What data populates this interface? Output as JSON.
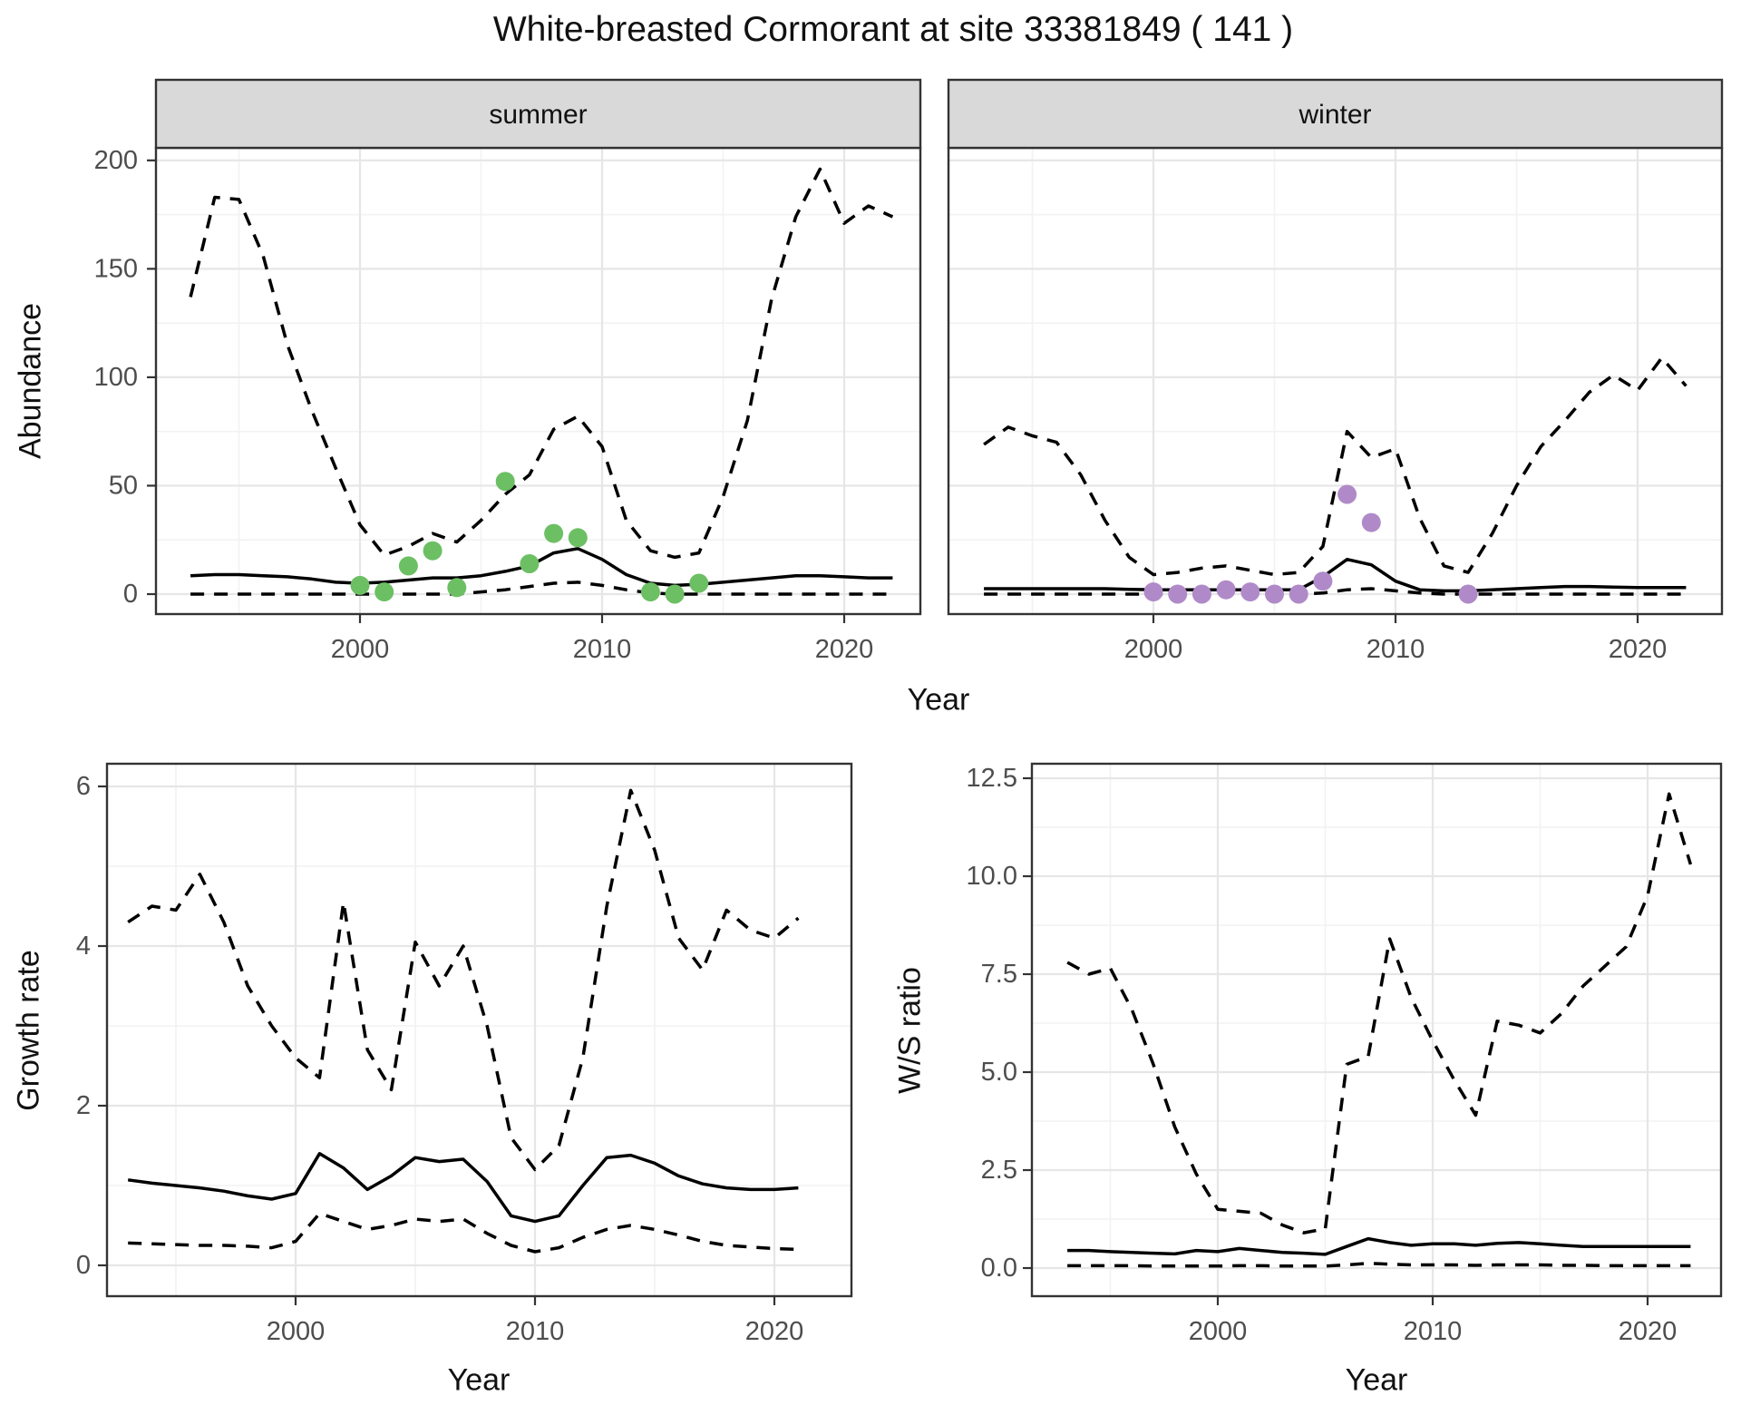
{
  "title": "White-breasted Cormorant at site 33381849 ( 141 )",
  "axis_labels": {
    "y_top": "Abundance",
    "x": "Year",
    "y_growth": "Growth rate",
    "y_ws": "W/S ratio"
  },
  "colors": {
    "summer_points": "#6cbf63",
    "winter_points": "#b08ac8",
    "line": "#000000",
    "strip_fill": "#d9d9d9",
    "panel_border": "#333333",
    "grid_major": "#e6e6e6",
    "grid_minor": "#f2f2f2",
    "tick_text": "#4d4d4d",
    "title_text": "#111111"
  },
  "chart_data": [
    {
      "id": "abundance-summer",
      "type": "line",
      "facet_label": "summer",
      "xlabel": "Year",
      "ylabel": "Abundance",
      "ylim": [
        0,
        205
      ],
      "grid": true,
      "legend": "none",
      "x_ticks": [
        2000,
        2010,
        2020
      ],
      "x_tick_labels": [
        "2000",
        "2010",
        "2020"
      ],
      "y_ticks": [
        0,
        50,
        100,
        150,
        200
      ],
      "y_tick_labels": [
        "0",
        "50",
        "100",
        "150",
        "200"
      ],
      "x": [
        1993,
        1994,
        1995,
        1996,
        1997,
        1998,
        1999,
        2000,
        2001,
        2002,
        2003,
        2004,
        2005,
        2006,
        2007,
        2008,
        2009,
        2010,
        2011,
        2012,
        2013,
        2014,
        2015,
        2016,
        2017,
        2018,
        2019,
        2020,
        2021,
        2022
      ],
      "series": [
        {
          "name": "upper_95ci",
          "style": "dashed",
          "values": [
            137,
            183,
            182,
            156,
            115,
            85,
            58,
            32,
            18,
            22,
            28,
            24,
            34,
            46,
            55,
            76,
            82,
            68,
            34,
            20,
            17,
            19,
            45,
            80,
            136,
            174,
            196,
            171,
            179,
            174
          ]
        },
        {
          "name": "median",
          "style": "solid",
          "values": [
            8.5,
            9,
            9,
            8.5,
            8,
            7,
            5.5,
            5,
            5.5,
            6.5,
            7.5,
            7.5,
            8.5,
            10.5,
            13,
            19,
            21,
            16,
            9,
            5,
            4,
            4.5,
            5.5,
            6.5,
            7.5,
            8.5,
            8.5,
            8,
            7.5,
            7.5
          ]
        },
        {
          "name": "lower_95ci",
          "style": "dashed",
          "values": [
            0,
            0,
            0,
            0,
            0,
            0,
            0,
            0,
            0,
            0,
            0,
            0,
            1,
            2,
            3.5,
            5,
            5.5,
            4,
            2,
            0.5,
            0,
            0,
            0,
            0,
            0,
            0,
            0,
            0,
            0,
            0
          ]
        }
      ],
      "points": {
        "name": "observed_counts",
        "color_key": "summer_points",
        "data": [
          [
            2000,
            4
          ],
          [
            2001,
            1
          ],
          [
            2002,
            13
          ],
          [
            2003,
            20
          ],
          [
            2004,
            3
          ],
          [
            2006,
            52
          ],
          [
            2007,
            14
          ],
          [
            2008,
            28
          ],
          [
            2009,
            26
          ],
          [
            2012,
            1
          ],
          [
            2013,
            0
          ],
          [
            2014,
            5
          ]
        ]
      }
    },
    {
      "id": "abundance-winter",
      "type": "line",
      "facet_label": "winter",
      "xlabel": "Year",
      "ylabel": "Abundance",
      "ylim": [
        0,
        205
      ],
      "grid": true,
      "legend": "none",
      "x_ticks": [
        2000,
        2010,
        2020
      ],
      "x_tick_labels": [
        "2000",
        "2010",
        "2020"
      ],
      "y_ticks": [
        0,
        50,
        100,
        150,
        200
      ],
      "y_tick_labels": [
        "0",
        "50",
        "100",
        "150",
        "200"
      ],
      "x": [
        1993,
        1994,
        1995,
        1996,
        1997,
        1998,
        1999,
        2000,
        2001,
        2002,
        2003,
        2004,
        2005,
        2006,
        2007,
        2008,
        2009,
        2010,
        2011,
        2012,
        2013,
        2014,
        2015,
        2016,
        2017,
        2018,
        2019,
        2020,
        2021,
        2022
      ],
      "series": [
        {
          "name": "upper_95ci",
          "style": "dashed",
          "values": [
            69,
            77,
            73,
            70,
            55,
            34,
            17,
            9,
            10,
            12,
            13,
            11,
            9,
            10,
            22,
            75,
            63,
            67,
            35,
            13,
            10,
            28,
            50,
            68,
            80,
            93,
            101,
            94,
            109,
            96
          ]
        },
        {
          "name": "median",
          "style": "solid",
          "values": [
            2.5,
            2.5,
            2.5,
            2.5,
            2.5,
            2.5,
            2.2,
            2,
            2,
            2,
            2,
            2,
            2,
            2,
            8,
            16,
            13.5,
            6,
            2,
            1.5,
            1.5,
            2,
            2.5,
            3,
            3.5,
            3.5,
            3.2,
            3,
            3,
            3
          ]
        },
        {
          "name": "lower_95ci",
          "style": "dashed",
          "values": [
            0,
            0,
            0,
            0,
            0,
            0,
            0,
            0,
            0,
            0,
            0,
            0,
            0,
            0,
            0.5,
            2,
            2.5,
            1.5,
            0.5,
            0,
            0,
            0,
            0,
            0,
            0,
            0,
            0,
            0,
            0,
            0
          ]
        }
      ],
      "points": {
        "name": "observed_counts",
        "color_key": "winter_points",
        "data": [
          [
            2000,
            1
          ],
          [
            2001,
            0
          ],
          [
            2002,
            0
          ],
          [
            2003,
            2
          ],
          [
            2004,
            1
          ],
          [
            2005,
            0
          ],
          [
            2006,
            0
          ],
          [
            2007,
            6
          ],
          [
            2008,
            46
          ],
          [
            2009,
            33
          ],
          [
            2013,
            0
          ]
        ]
      }
    },
    {
      "id": "growth-rate",
      "type": "line",
      "facet_label": null,
      "xlabel": "Year",
      "ylabel": "Growth rate",
      "ylim": [
        0,
        6.3
      ],
      "grid": true,
      "legend": "none",
      "x_ticks": [
        2000,
        2010,
        2020
      ],
      "x_tick_labels": [
        "2000",
        "2010",
        "2020"
      ],
      "y_ticks": [
        0,
        2,
        4,
        6
      ],
      "y_tick_labels": [
        "0",
        "2",
        "4",
        "6"
      ],
      "x": [
        1993,
        1994,
        1995,
        1996,
        1997,
        1998,
        1999,
        2000,
        2001,
        2002,
        2003,
        2004,
        2005,
        2006,
        2007,
        2008,
        2009,
        2010,
        2011,
        2012,
        2013,
        2014,
        2015,
        2016,
        2017,
        2018,
        2019,
        2020,
        2021
      ],
      "series": [
        {
          "name": "upper_95ci",
          "style": "dashed",
          "values": [
            4.3,
            4.5,
            4.45,
            4.9,
            4.3,
            3.5,
            3.0,
            2.6,
            2.35,
            4.55,
            2.7,
            2.2,
            4.05,
            3.5,
            4.0,
            3.0,
            1.6,
            1.2,
            1.5,
            2.6,
            4.5,
            5.95,
            5.2,
            4.1,
            3.7,
            4.45,
            4.2,
            4.1,
            4.35
          ]
        },
        {
          "name": "median",
          "style": "solid",
          "values": [
            1.07,
            1.03,
            1.0,
            0.97,
            0.93,
            0.87,
            0.83,
            0.9,
            1.4,
            1.22,
            0.95,
            1.12,
            1.35,
            1.3,
            1.33,
            1.05,
            0.62,
            0.55,
            0.62,
            1.0,
            1.35,
            1.38,
            1.28,
            1.12,
            1.02,
            0.97,
            0.95,
            0.95,
            0.97
          ]
        },
        {
          "name": "lower_95ci",
          "style": "dashed",
          "values": [
            0.28,
            0.27,
            0.26,
            0.25,
            0.25,
            0.24,
            0.22,
            0.3,
            0.65,
            0.55,
            0.45,
            0.5,
            0.58,
            0.55,
            0.58,
            0.4,
            0.25,
            0.17,
            0.22,
            0.35,
            0.45,
            0.5,
            0.45,
            0.38,
            0.3,
            0.25,
            0.23,
            0.21,
            0.2
          ]
        }
      ],
      "points": null
    },
    {
      "id": "ws-ratio",
      "type": "line",
      "facet_label": null,
      "xlabel": "Year",
      "ylabel": "W/S ratio",
      "ylim": [
        0,
        13
      ],
      "grid": true,
      "legend": "none",
      "x_ticks": [
        2000,
        2010,
        2020
      ],
      "x_tick_labels": [
        "2000",
        "2010",
        "2020"
      ],
      "y_ticks": [
        0,
        2.5,
        5,
        7.5,
        10,
        12.5
      ],
      "y_tick_labels": [
        "0.0",
        "2.5",
        "5.0",
        "7.5",
        "10.0",
        "12.5"
      ],
      "x": [
        1993,
        1994,
        1995,
        1996,
        1997,
        1998,
        1999,
        2000,
        2001,
        2002,
        2003,
        2004,
        2005,
        2006,
        2007,
        2008,
        2009,
        2010,
        2011,
        2012,
        2013,
        2014,
        2015,
        2016,
        2017,
        2018,
        2019,
        2020,
        2021,
        2022
      ],
      "series": [
        {
          "name": "upper_95ci",
          "style": "dashed",
          "values": [
            7.8,
            7.5,
            7.65,
            6.6,
            5.2,
            3.6,
            2.4,
            1.5,
            1.45,
            1.4,
            1.1,
            0.9,
            1.0,
            5.2,
            5.4,
            8.4,
            6.9,
            5.8,
            4.8,
            3.9,
            6.3,
            6.2,
            6.0,
            6.5,
            7.2,
            7.7,
            8.2,
            9.5,
            12.1,
            10.3
          ]
        },
        {
          "name": "median",
          "style": "solid",
          "values": [
            0.45,
            0.45,
            0.42,
            0.4,
            0.38,
            0.36,
            0.45,
            0.42,
            0.5,
            0.45,
            0.4,
            0.38,
            0.35,
            0.55,
            0.75,
            0.65,
            0.58,
            0.62,
            0.62,
            0.58,
            0.63,
            0.65,
            0.62,
            0.58,
            0.55,
            0.55,
            0.55,
            0.55,
            0.55,
            0.55
          ]
        },
        {
          "name": "lower_95ci",
          "style": "dashed",
          "values": [
            0.06,
            0.06,
            0.06,
            0.06,
            0.05,
            0.05,
            0.05,
            0.05,
            0.06,
            0.06,
            0.05,
            0.05,
            0.05,
            0.08,
            0.12,
            0.1,
            0.08,
            0.08,
            0.08,
            0.07,
            0.08,
            0.08,
            0.08,
            0.07,
            0.07,
            0.06,
            0.06,
            0.06,
            0.06,
            0.06
          ]
        }
      ],
      "points": null
    }
  ]
}
